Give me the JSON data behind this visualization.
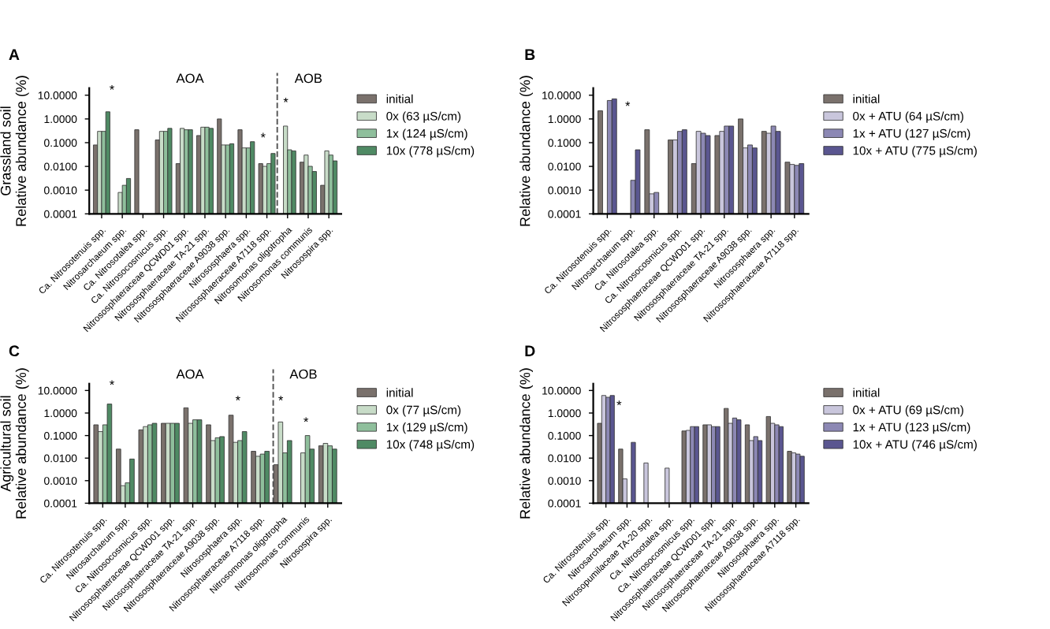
{
  "chart_data": [
    {
      "type": "bar",
      "title": "A",
      "ylabel": "Grassland soil\nRelative abundance (%)",
      "log": true,
      "ylim": [
        0.0001,
        20
      ],
      "yticks": [
        {
          "value": 0.0001,
          "label": "0.0001"
        },
        {
          "value": 0.001,
          "label": "0.0010"
        },
        {
          "value": 0.01,
          "label": "0.0100"
        },
        {
          "value": 0.1,
          "label": "0.1000"
        },
        {
          "value": 1,
          "label": "1.0000"
        },
        {
          "value": 10,
          "label": "10.0000"
        }
      ],
      "legend": "right",
      "grid": false,
      "categories": [
        "Ca. Nitrosotenuis spp.",
        "Nitrosarchaeum spp.",
        "Ca. Nitrosotalea spp.",
        "Ca. Nitrosocosmicus spp.",
        "Nitrososphaeraceae QCWD01 spp.",
        "Nitrososphaeraceae TA-21 spp.",
        "Nitrososphaeraceae A9038 spp.",
        "Nitrososphaera spp.",
        "Nitrososphaeraceae A7118 spp.",
        "Nitrosomonas oligotropha",
        "Nitrosomonas communis",
        "Nitrosospira spp."
      ],
      "series": [
        {
          "name": "initial",
          "color": "#7a716c",
          "values": [
            0.08,
            null,
            0.35,
            0.13,
            0.013,
            0.2,
            1.0,
            0.35,
            0.013,
            null,
            0.015,
            0.0015
          ]
        },
        {
          "name": "0x (63 µS/cm)",
          "color": "#c8dcc8",
          "values": [
            0.3,
            0.0007,
            null,
            0.3,
            0.4,
            0.45,
            0.08,
            0.06,
            0.01,
            0.5,
            0.03,
            0.045
          ]
        },
        {
          "name": "1x (124 µS/cm)",
          "color": "#8fbf9c",
          "values": [
            0.3,
            0.0015,
            null,
            0.3,
            0.35,
            0.45,
            0.08,
            0.06,
            0.013,
            0.05,
            0.01,
            0.03
          ]
        },
        {
          "name": "10x (778 µS/cm)",
          "color": "#4f8a64",
          "values": [
            2,
            0.003,
            null,
            0.4,
            0.35,
            0.4,
            0.09,
            0.11,
            0.035,
            0.045,
            0.006,
            0.017
          ]
        }
      ],
      "annotations": [
        "AOA",
        "AOB",
        "*",
        "*",
        "*"
      ]
    },
    {
      "type": "bar",
      "title": "B",
      "ylabel": "Relative abundance (%)",
      "log": true,
      "ylim": [
        0.0001,
        20
      ],
      "yticks": [
        {
          "value": 0.0001,
          "label": "0.0001"
        },
        {
          "value": 0.001,
          "label": "0.0010"
        },
        {
          "value": 0.01,
          "label": "0.0100"
        },
        {
          "value": 0.1,
          "label": "0.1000"
        },
        {
          "value": 1,
          "label": "1.0000"
        },
        {
          "value": 10,
          "label": "10.0000"
        }
      ],
      "legend": "right",
      "grid": false,
      "categories": [
        "Ca. Nitrosotenuis spp.",
        "Nitrosarchaeum spp.",
        "Ca. Nitrosotalea spp.",
        "Ca. Nitrosocosmicus spp.",
        "Nitrososphaeraceae QCWD01 spp.",
        "Nitrososphaeraceae TA-21 spp.",
        "Nitrososphaeraceae A9038 spp.",
        "Nitrososphaera spp.",
        "Nitrososphaeraceae A7118 spp."
      ],
      "series": [
        {
          "name": "initial",
          "color": "#7a716c",
          "values": [
            2.2,
            null,
            0.35,
            0.13,
            0.013,
            0.2,
            1.0,
            0.3,
            0.015
          ]
        },
        {
          "name": "0x + ATU (64 µS/cm)",
          "color": "#c9c6dc",
          "values": [
            null,
            null,
            0.0006,
            0.13,
            0.3,
            0.3,
            0.06,
            0.25,
            0.012
          ]
        },
        {
          "name": "1x + ATU (127 µS/cm)",
          "color": "#8c88b4",
          "values": [
            6,
            0.0025,
            0.0007,
            0.3,
            0.25,
            0.5,
            0.08,
            0.5,
            0.011
          ]
        },
        {
          "name": "10x + ATU (775 µS/cm)",
          "color": "#5a5690",
          "values": [
            7,
            0.05,
            null,
            0.35,
            0.2,
            0.5,
            0.06,
            0.3,
            0.013
          ]
        }
      ],
      "annotations": [
        "*"
      ]
    },
    {
      "type": "bar",
      "title": "C",
      "ylabel": "Agricultural soil\nRelative abundance (%)",
      "log": true,
      "ylim": [
        0.0001,
        20
      ],
      "yticks": [
        {
          "value": 0.0001,
          "label": "0.0001"
        },
        {
          "value": 0.001,
          "label": "0.0010"
        },
        {
          "value": 0.01,
          "label": "0.0100"
        },
        {
          "value": 0.1,
          "label": "0.1000"
        },
        {
          "value": 1,
          "label": "1.0000"
        },
        {
          "value": 10,
          "label": "10.0000"
        }
      ],
      "legend": "right",
      "grid": false,
      "categories": [
        "Ca. Nitrosotenuis spp.",
        "Nitrosarchaeum spp.",
        "Ca. Nitrosocosmicus spp.",
        "Nitrososphaeraceae QCWD01 spp.",
        "Nitrososphaeraceae TA-21 spp.",
        "Nitrososphaeraceae A9038 spp.",
        "Nitrososphaera spp.",
        "Nitrososphaeraceae A7118 spp.",
        "Nitrosomonas oligotropha",
        "Nitrosomonas communis",
        "Nitrosospira spp."
      ],
      "series": [
        {
          "name": "initial",
          "color": "#7a716c",
          "values": [
            0.3,
            0.025,
            0.18,
            0.35,
            1.7,
            0.3,
            0.8,
            0.02,
            0.005,
            null,
            0.035
          ]
        },
        {
          "name": "0x (77 µS/cm)",
          "color": "#c8dcc8",
          "values": [
            0.15,
            0.0005,
            0.25,
            0.35,
            0.35,
            0.06,
            0.05,
            0.012,
            0.4,
            0.017,
            0.045
          ]
        },
        {
          "name": "1x (129 µS/cm)",
          "color": "#8fbf9c",
          "values": [
            0.3,
            0.0007,
            0.3,
            0.35,
            0.5,
            0.08,
            0.06,
            0.015,
            0.017,
            0.1,
            0.035
          ]
        },
        {
          "name": "10x (748 µS/cm)",
          "color": "#4f8a64",
          "values": [
            2.5,
            0.009,
            0.35,
            0.35,
            0.5,
            0.09,
            0.15,
            0.02,
            0.06,
            0.025,
            0.025
          ]
        }
      ],
      "annotations": [
        "AOA",
        "AOB",
        "*",
        "*",
        "*",
        "*"
      ]
    },
    {
      "type": "bar",
      "title": "D",
      "ylabel": "Relative abundance (%)",
      "log": true,
      "ylim": [
        0.0001,
        20
      ],
      "yticks": [
        {
          "value": 0.0001,
          "label": "0.0001"
        },
        {
          "value": 0.001,
          "label": "0.0010"
        },
        {
          "value": 0.01,
          "label": "0.0100"
        },
        {
          "value": 0.1,
          "label": "0.1000"
        },
        {
          "value": 1,
          "label": "1.0000"
        },
        {
          "value": 10,
          "label": "10.0000"
        }
      ],
      "legend": "right",
      "grid": false,
      "categories": [
        "Ca. Nitrosotenuis spp.",
        "Nitrosarchaeum spp.",
        "Nitrosopumilaceae TA-20 spp.",
        "Ca. Nitrosotalea spp.",
        "Ca. Nitrosocosmicus spp.",
        "Nitrososphaeraceae QCWD01 spp.",
        "Nitrososphaeraceae TA-21 spp.",
        "Nitrososphaeraceae A9038 spp.",
        "Nitrososphaera spp.",
        "Nitrososphaeraceae A7118 spp."
      ],
      "series": [
        {
          "name": "initial",
          "color": "#7a716c",
          "values": [
            0.35,
            0.025,
            null,
            null,
            0.16,
            0.3,
            1.6,
            0.3,
            0.7,
            0.02
          ]
        },
        {
          "name": "0x + ATU (69 µS/cm)",
          "color": "#c9c6dc",
          "values": [
            6,
            0.0011,
            0.006,
            0.0035,
            0.17,
            0.3,
            0.35,
            0.06,
            0.35,
            0.017
          ]
        },
        {
          "name": "1x + ATU (123 µS/cm)",
          "color": "#8c88b4",
          "values": [
            5,
            null,
            null,
            null,
            0.25,
            0.25,
            0.6,
            0.09,
            0.3,
            0.015
          ]
        },
        {
          "name": "10x + ATU (746 µS/cm)",
          "color": "#5a5690",
          "values": [
            6,
            0.05,
            null,
            null,
            0.25,
            0.25,
            0.5,
            0.06,
            0.25,
            0.012
          ]
        }
      ],
      "annotations": [
        "*"
      ]
    }
  ]
}
